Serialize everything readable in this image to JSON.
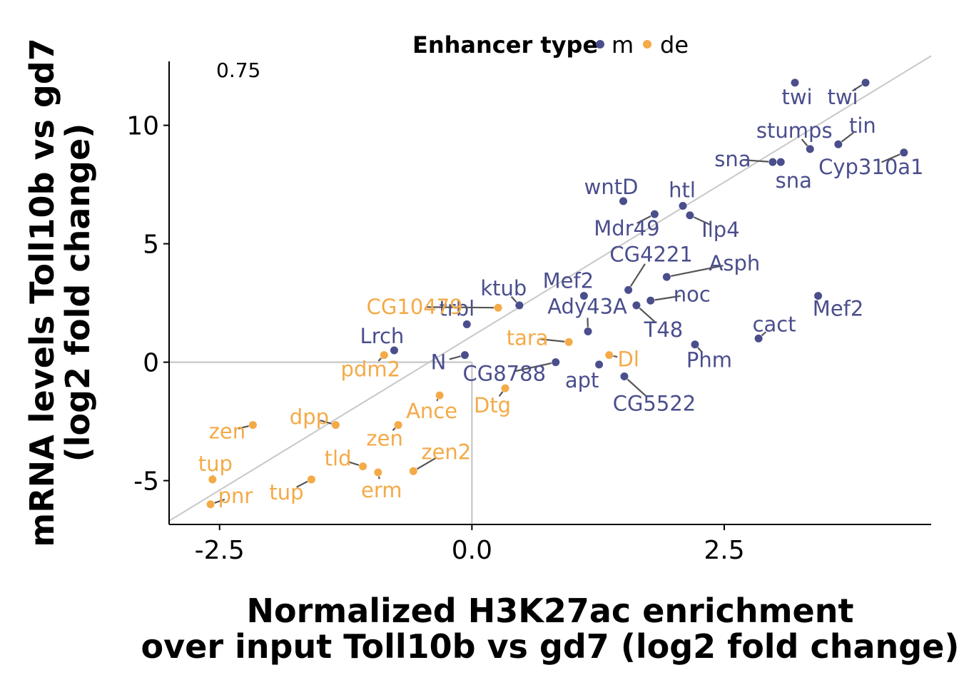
{
  "chart_data": {
    "type": "scatter",
    "xlabel_lines": [
      "Normalized H3K27ac enrichment",
      "over input Toll10b vs gd7 (log2 fold change)"
    ],
    "ylabel_lines": [
      "mRNA levels Toll10b vs gd7",
      "(log2 fold change)"
    ],
    "xlim": [
      -3.0,
      4.55
    ],
    "ylim": [
      -6.85,
      12.7
    ],
    "xticks": [
      -2.5,
      0.0,
      2.5
    ],
    "xtick_labels": [
      "-2.5",
      "0.0",
      "2.5"
    ],
    "yticks": [
      -5,
      0,
      5,
      10
    ],
    "ytick_labels": [
      "-5",
      "0",
      "5",
      "10"
    ],
    "annotation": "0.75",
    "fit_line": {
      "intercept": 1.1,
      "slope": 2.6
    },
    "legend": {
      "title": "Enhancer type",
      "placement": "top"
    },
    "series": [
      {
        "name": "m",
        "color": "#4a4e8c",
        "points": [
          {
            "label": "twi",
            "x": 3.2,
            "y": 11.8
          },
          {
            "label": "twi",
            "x": 3.9,
            "y": 11.8
          },
          {
            "label": "stumps",
            "x": 3.35,
            "y": 9.0
          },
          {
            "label": "tin",
            "x": 3.63,
            "y": 9.2
          },
          {
            "label": "sna",
            "x": 2.98,
            "y": 8.45
          },
          {
            "label": "sna",
            "x": 3.06,
            "y": 8.45
          },
          {
            "label": "Cyp310a1",
            "x": 4.28,
            "y": 8.85
          },
          {
            "label": "wntD",
            "x": 1.5,
            "y": 6.8
          },
          {
            "label": "htl",
            "x": 2.09,
            "y": 6.6
          },
          {
            "label": "Mdr49",
            "x": 1.81,
            "y": 6.25
          },
          {
            "label": "Ilp4",
            "x": 2.16,
            "y": 6.2
          },
          {
            "label": "CG4221",
            "x": 1.55,
            "y": 3.05
          },
          {
            "label": "Asph",
            "x": 1.93,
            "y": 3.6
          },
          {
            "label": "Mef2",
            "x": 1.11,
            "y": 2.8
          },
          {
            "label": "noc",
            "x": 1.77,
            "y": 2.6
          },
          {
            "label": "ktub",
            "x": 0.47,
            "y": 2.4
          },
          {
            "label": "Ady43A",
            "x": 1.15,
            "y": 1.3
          },
          {
            "label": "T48",
            "x": 1.63,
            "y": 2.4
          },
          {
            "label": "Mef2",
            "x": 3.43,
            "y": 2.8
          },
          {
            "label": "cact",
            "x": 2.84,
            "y": 1.0
          },
          {
            "label": "Phm",
            "x": 2.21,
            "y": 0.75
          },
          {
            "label": "Lrch",
            "x": -0.77,
            "y": 0.5
          },
          {
            "label": "trbl",
            "x": -0.05,
            "y": 1.6
          },
          {
            "label": "N",
            "x": -0.07,
            "y": 0.3
          },
          {
            "label": "CG8788",
            "x": 0.83,
            "y": 0.0
          },
          {
            "label": "apt",
            "x": 1.26,
            "y": -0.1
          },
          {
            "label": "CG5522",
            "x": 1.51,
            "y": -0.6
          }
        ]
      },
      {
        "name": "de",
        "color": "#f4aa47",
        "points": [
          {
            "label": "CG10479",
            "x": 0.26,
            "y": 2.3
          },
          {
            "label": "tara",
            "x": 0.96,
            "y": 0.85
          },
          {
            "label": "Dl",
            "x": 1.36,
            "y": 0.3
          },
          {
            "label": "pdm2",
            "x": -0.87,
            "y": 0.3
          },
          {
            "label": "Dtg",
            "x": 0.33,
            "y": -1.1
          },
          {
            "label": "Ance",
            "x": -0.32,
            "y": -1.4
          },
          {
            "label": "dpp",
            "x": -1.35,
            "y": -2.65
          },
          {
            "label": "zen",
            "x": -2.17,
            "y": -2.65
          },
          {
            "label": "zen",
            "x": -0.73,
            "y": -2.65
          },
          {
            "label": "tld",
            "x": -1.08,
            "y": -4.4
          },
          {
            "label": "erm",
            "x": -0.93,
            "y": -4.65
          },
          {
            "label": "zen2",
            "x": -0.58,
            "y": -4.6
          },
          {
            "label": "tup",
            "x": -2.57,
            "y": -4.95
          },
          {
            "label": "tup",
            "x": -1.59,
            "y": -4.95
          },
          {
            "label": "pnr",
            "x": -2.59,
            "y": -6.0
          }
        ]
      }
    ]
  }
}
